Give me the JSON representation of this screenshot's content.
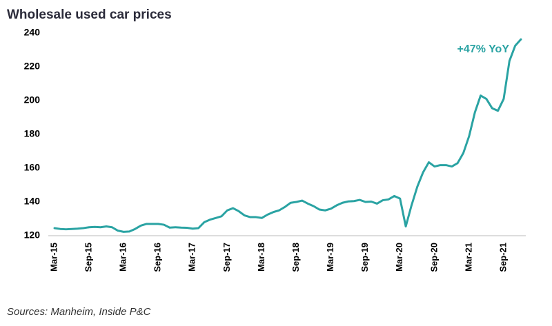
{
  "chart_data": {
    "type": "line",
    "title": "Wholesale used car prices",
    "source": "Sources: Manheim, Inside P&C",
    "annotation": "+47% YoY",
    "categories": [
      "Mar-15",
      null,
      null,
      null,
      null,
      null,
      "Sep-15",
      null,
      null,
      null,
      null,
      null,
      "Mar-16",
      null,
      null,
      null,
      null,
      null,
      "Sep-16",
      null,
      null,
      null,
      null,
      null,
      "Mar-17",
      null,
      null,
      null,
      null,
      null,
      "Sep-17",
      null,
      null,
      null,
      null,
      null,
      "Mar-18",
      null,
      null,
      null,
      null,
      null,
      "Sep-18",
      null,
      null,
      null,
      null,
      null,
      "Mar-19",
      null,
      null,
      null,
      null,
      null,
      "Sep-19",
      null,
      null,
      null,
      null,
      null,
      "Mar-20",
      null,
      null,
      null,
      null,
      null,
      "Sep-20",
      null,
      null,
      null,
      null,
      null,
      "Mar-21",
      null,
      null,
      null,
      null,
      null,
      "Sep-21",
      null,
      null,
      null
    ],
    "series": [
      {
        "name": "Wholesale used car prices",
        "color": "#2aa3a3",
        "values": [
          124.5,
          124,
          123.8,
          124,
          124.2,
          124.5,
          125,
          125.2,
          125,
          125.5,
          125,
          123,
          122.3,
          122.5,
          124,
          126,
          127,
          127,
          127,
          126.5,
          124.8,
          125,
          124.8,
          124.7,
          124.2,
          124.5,
          128,
          129.5,
          130.5,
          131.5,
          135,
          136.3,
          134.5,
          132,
          131,
          131,
          130.5,
          132.5,
          134,
          135,
          137,
          139.5,
          140,
          140.8,
          139,
          137.5,
          135.5,
          135,
          136,
          138,
          139.5,
          140.3,
          140.5,
          141.2,
          140,
          140.2,
          139,
          141,
          141.5,
          143.5,
          142,
          125.5,
          138,
          149,
          157.5,
          163.5,
          161,
          161.8,
          161.8,
          161,
          163,
          169,
          179,
          193,
          203,
          201,
          195.5,
          194,
          201,
          223.5,
          232.5,
          236.3
        ]
      }
    ],
    "ylim": [
      120,
      240
    ],
    "yticks": [
      120,
      140,
      160,
      180,
      200,
      220,
      240
    ],
    "grid": false
  }
}
